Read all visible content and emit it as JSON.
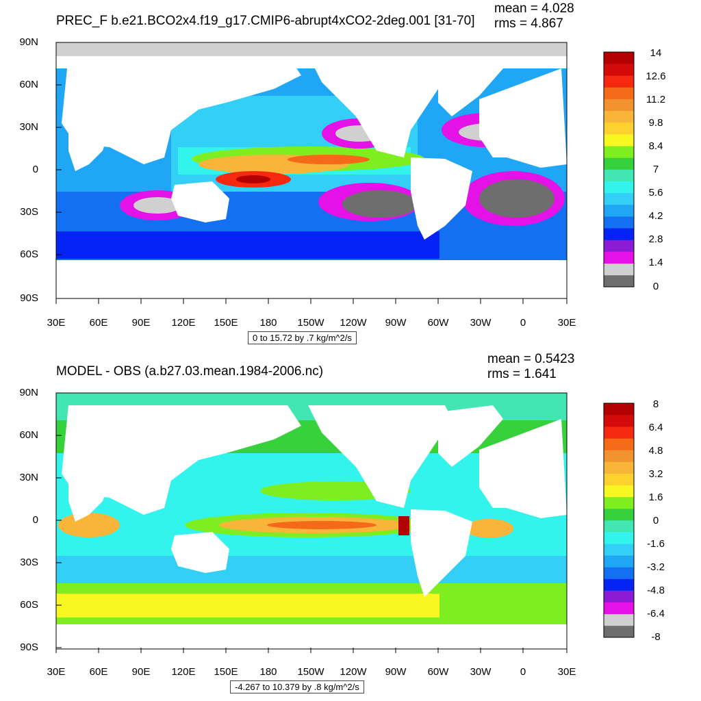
{
  "panels": [
    {
      "title": "PREC_F b.e21.BCO2x4.f19_g17.CMIP6-abrupt4xCO2-2deg.001 [31-70]",
      "mean": "mean = 4.028",
      "rms": "rms = 4.867",
      "range": "0 to 15.72 by .7 kg/m^2/s",
      "colorbar": {
        "colors": [
          "#6e6e6e",
          "#d0d0d0",
          "#e412e6",
          "#8e1bd4",
          "#0523f5",
          "#1370f0",
          "#1fa6f4",
          "#33cff7",
          "#32f4ec",
          "#41e6b3",
          "#37d13c",
          "#7fee20",
          "#f8f721",
          "#fdd22f",
          "#f8b53a",
          "#f19430",
          "#f46a19",
          "#f42910",
          "#d40a0a",
          "#b30000"
        ],
        "labels": [
          "0",
          "1.4",
          "2.8",
          "4.2",
          "5.6",
          "7",
          "8.4",
          "9.8",
          "11.2",
          "12.6",
          "14"
        ]
      }
    },
    {
      "title": "MODEL - OBS (a.b27.03.mean.1984-2006.nc)",
      "mean": "mean = 0.5423",
      "rms": "rms = 1.641",
      "range": "-4.267 to 10.379 by .8 kg/m^2/s",
      "colorbar": {
        "colors": [
          "#6e6e6e",
          "#d0d0d0",
          "#e412e6",
          "#8e1bd4",
          "#0523f5",
          "#1370f0",
          "#1fa6f4",
          "#33cff7",
          "#32f4ec",
          "#41e6b3",
          "#37d13c",
          "#7fee20",
          "#f8f721",
          "#fdd22f",
          "#f8b53a",
          "#f19430",
          "#f46a19",
          "#f42910",
          "#d40a0a",
          "#b30000"
        ],
        "labels": [
          "-8",
          "-6.4",
          "-4.8",
          "-3.2",
          "-1.6",
          "0",
          "1.6",
          "3.2",
          "4.8",
          "6.4",
          "8"
        ]
      }
    }
  ],
  "lat_labels": [
    "90N",
    "60N",
    "30N",
    "0",
    "30S",
    "60S",
    "90S"
  ],
  "lon_labels": [
    "30E",
    "60E",
    "90E",
    "120E",
    "150E",
    "180",
    "150W",
    "120W",
    "90W",
    "60W",
    "30W",
    "0",
    "30E"
  ]
}
